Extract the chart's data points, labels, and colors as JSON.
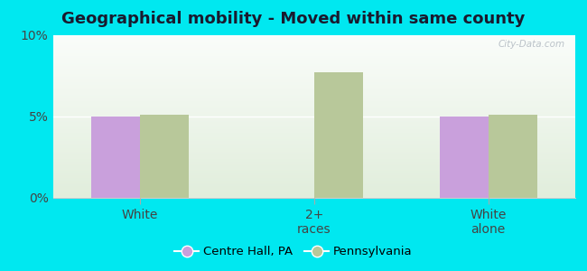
{
  "title": "Geographical mobility - Moved within same county",
  "categories": [
    "White",
    "2+\nraces",
    "White\nalone"
  ],
  "centre_hall_values": [
    5.0,
    null,
    5.0
  ],
  "pennsylvania_values": [
    5.1,
    7.7,
    5.1
  ],
  "centre_hall_color": "#c9a0dc",
  "pennsylvania_color": "#b8c89a",
  "ylim": [
    0,
    10
  ],
  "yticks": [
    0,
    5,
    10
  ],
  "yticklabels": [
    "0%",
    "5%",
    "10%"
  ],
  "background_color": "#00e8f0",
  "bar_width": 0.28,
  "legend_labels": [
    "Centre Hall, PA",
    "Pennsylvania"
  ],
  "title_fontsize": 13,
  "tick_fontsize": 10,
  "group_positions": [
    0.5,
    1.5,
    2.5
  ]
}
